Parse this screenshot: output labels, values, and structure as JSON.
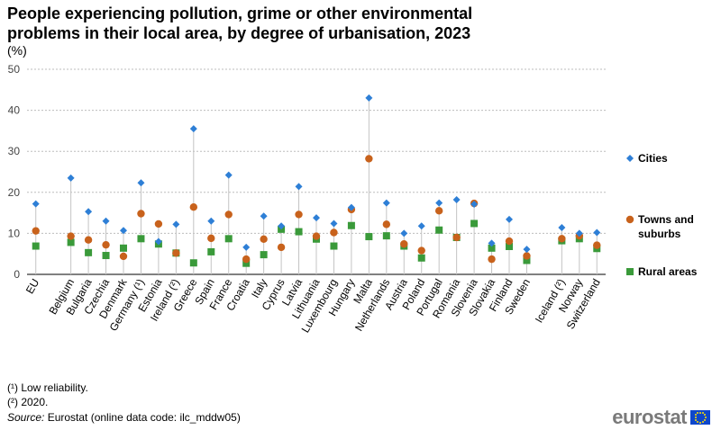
{
  "chart_data": {
    "type": "scatter",
    "title": "People experiencing pollution, grime or other environmental problems in their local area, by degree of urbanisation, 2023",
    "unit_label": "(%)",
    "ylim": [
      0,
      50
    ],
    "yticks": [
      0,
      10,
      20,
      30,
      40,
      50
    ],
    "grid": true,
    "legend_position": "right",
    "categories": [
      "EU",
      "",
      "Belgium",
      "Bulgaria",
      "Czechia",
      "Denmark",
      "Germany (¹)",
      "Estonia",
      "Ireland (²)",
      "Greece",
      "Spain",
      "France",
      "Croatia",
      "Italy",
      "Cyprus",
      "Latvia",
      "Lithuania",
      "Luxembourg",
      "Hungary",
      "Malta",
      "Netherlands",
      "Austria",
      "Poland",
      "Portugal",
      "Romania",
      "Slovenia",
      "Slovakia",
      "Finland",
      "Sweden",
      "",
      "Iceland (²)",
      "Norway",
      "Switzerland"
    ],
    "series": [
      {
        "name": "Cities",
        "marker": "diamond",
        "color": "#2e7fd6",
        "values": [
          17.2,
          null,
          23.5,
          15.3,
          13.0,
          10.7,
          22.3,
          8.0,
          12.2,
          35.5,
          13.0,
          24.2,
          6.6,
          14.2,
          11.8,
          21.4,
          13.8,
          12.4,
          16.3,
          43.0,
          17.4,
          10.0,
          11.8,
          17.4,
          18.2,
          17.1,
          7.6,
          13.4,
          6.1,
          null,
          11.4,
          10.0,
          10.2
        ]
      },
      {
        "name": "Towns and suburbs",
        "marker": "circle",
        "color": "#c8621c",
        "values": [
          10.6,
          null,
          9.3,
          8.4,
          7.2,
          4.4,
          14.8,
          12.3,
          5.2,
          16.4,
          8.8,
          14.6,
          3.7,
          8.6,
          6.6,
          14.6,
          9.3,
          10.2,
          15.8,
          28.2,
          12.2,
          7.4,
          5.8,
          15.5,
          9.0,
          17.3,
          3.7,
          8.1,
          4.5,
          null,
          8.7,
          9.4,
          7.1
        ]
      },
      {
        "name": "Rural areas",
        "marker": "square",
        "color": "#3a9a3a",
        "values": [
          6.9,
          null,
          7.8,
          5.3,
          4.6,
          6.4,
          8.7,
          7.4,
          5.2,
          2.8,
          5.5,
          8.7,
          2.7,
          4.8,
          11.0,
          10.4,
          8.6,
          6.9,
          11.9,
          9.2,
          9.4,
          6.9,
          4.0,
          10.8,
          9.0,
          12.4,
          6.4,
          6.8,
          3.4,
          null,
          8.2,
          8.7,
          6.3
        ]
      }
    ]
  },
  "footnotes": [
    "(¹) Low reliability.",
    "(²) 2020."
  ],
  "source": {
    "label": "Source:",
    "text": " Eurostat (online data code: ilc_mddw05)"
  },
  "brand": {
    "text": "eurostat",
    "flag_icon": "eu-flag-icon"
  }
}
